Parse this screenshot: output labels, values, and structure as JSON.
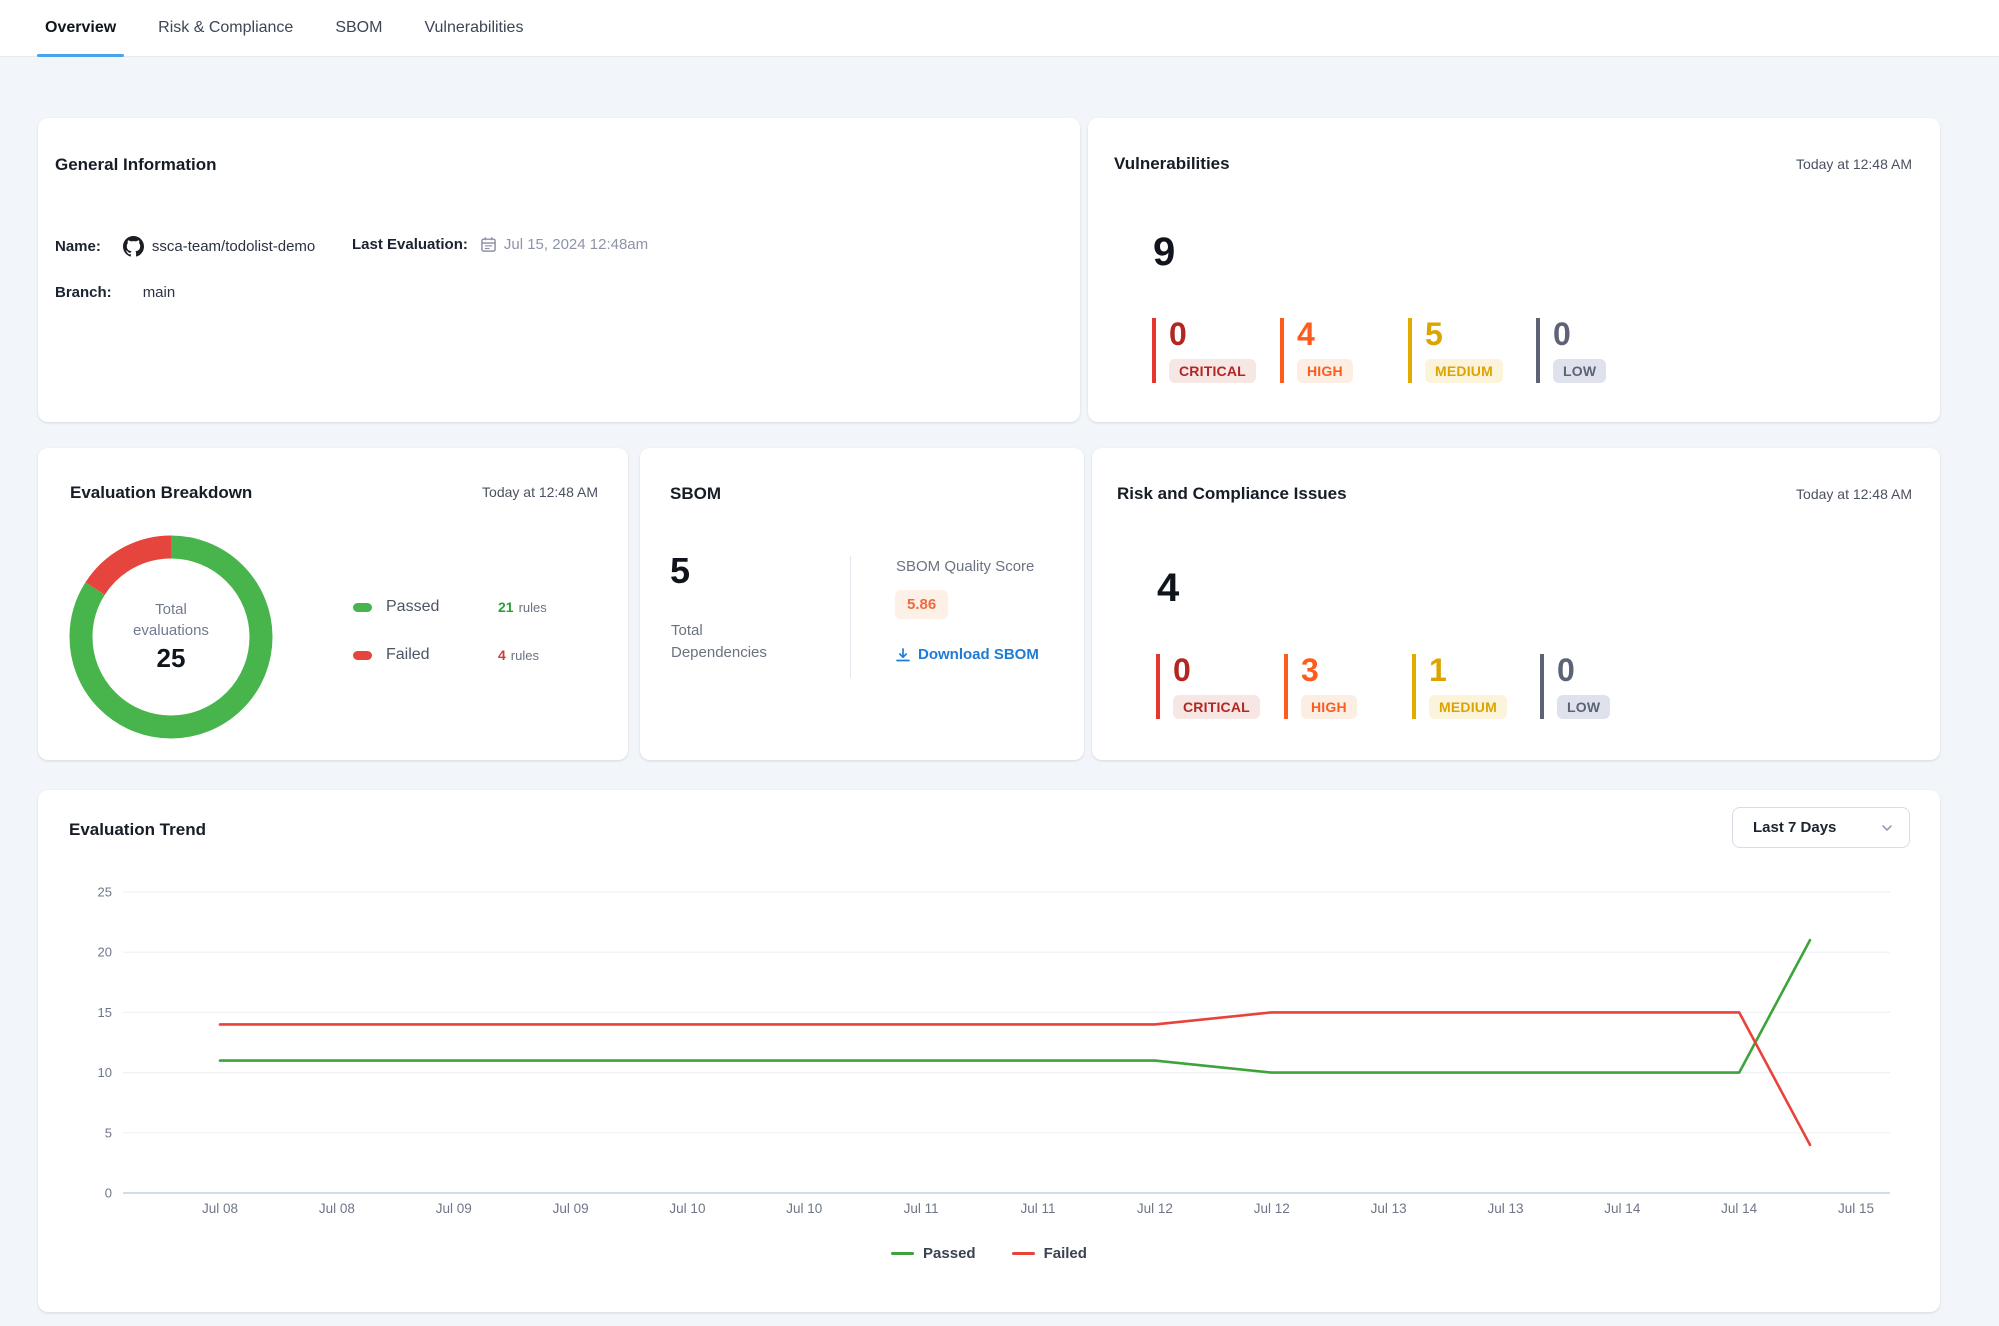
{
  "tabs": {
    "items": [
      {
        "label": "Overview"
      },
      {
        "label": "Risk & Compliance"
      },
      {
        "label": "SBOM"
      },
      {
        "label": "Vulnerabilities"
      }
    ]
  },
  "general": {
    "title": "General Information",
    "name_label": "Name:",
    "name_value": "ssca-team/todolist-demo",
    "last_eval_label": "Last Evaluation:",
    "last_eval_value": "Jul 15, 2024 12:48am",
    "branch_label": "Branch:",
    "branch_value": "main"
  },
  "vulnerabilities": {
    "title": "Vulnerabilities",
    "timestamp": "Today at 12:48 AM",
    "total": "9",
    "severities": [
      {
        "label": "CRITICAL",
        "count": "0"
      },
      {
        "label": "HIGH",
        "count": "4"
      },
      {
        "label": "MEDIUM",
        "count": "5"
      },
      {
        "label": "LOW",
        "count": "0"
      }
    ]
  },
  "breakdown": {
    "title": "Evaluation Breakdown",
    "timestamp": "Today at 12:48 AM",
    "center_caption_line1": "Total",
    "center_caption_line2": "evaluations",
    "center_total": "25",
    "legend": [
      {
        "label": "Passed",
        "count": "21",
        "unit": "rules"
      },
      {
        "label": "Failed",
        "count": "4",
        "unit": "rules"
      }
    ]
  },
  "sbom": {
    "title": "SBOM",
    "total": "5",
    "total_caption_line1": "Total",
    "total_caption_line2": "Dependencies",
    "score_label": "SBOM Quality Score",
    "score_value": "5.86",
    "download_label": "Download SBOM"
  },
  "risk": {
    "title": "Risk and Compliance Issues",
    "timestamp": "Today at 12:48 AM",
    "total": "4",
    "severities": [
      {
        "label": "CRITICAL",
        "count": "0"
      },
      {
        "label": "HIGH",
        "count": "3"
      },
      {
        "label": "MEDIUM",
        "count": "1"
      },
      {
        "label": "LOW",
        "count": "0"
      }
    ]
  },
  "trend": {
    "title": "Evaluation Trend",
    "range_selector": "Last 7 Days"
  },
  "chart_data": {
    "type": "line",
    "title": "Evaluation Trend",
    "categories": [
      "Jul 08",
      "Jul 08",
      "Jul 09",
      "Jul 09",
      "Jul 10",
      "Jul 10",
      "Jul 11",
      "Jul 11",
      "Jul 12",
      "Jul 12",
      "Jul 13",
      "Jul 13",
      "Jul 14",
      "Jul 14",
      "Jul 15"
    ],
    "series": [
      {
        "name": "Passed",
        "color": "#3fa33c",
        "values": [
          11,
          11,
          11,
          11,
          11,
          11,
          11,
          11,
          11,
          10,
          10,
          10,
          10,
          10,
          21
        ]
      },
      {
        "name": "Failed",
        "color": "#e8433a",
        "values": [
          14,
          14,
          14,
          14,
          14,
          14,
          14,
          14,
          14,
          15,
          15,
          15,
          15,
          15,
          4
        ]
      }
    ],
    "ylim": [
      0,
      25
    ],
    "yticks": [
      0,
      5,
      10,
      15,
      20,
      25
    ],
    "grid": true,
    "legend_position": "bottom"
  },
  "colors": {
    "tab_accent": "#4aa3e8",
    "passed_line": "#3fa33c",
    "failed_line": "#e8433a",
    "donut_passed": "#47b44c",
    "donut_failed": "#e5453c",
    "critical": "#b32622",
    "high": "#fd5c1e",
    "medium": "#dda400",
    "low": "#5c6377",
    "link": "#1f7cd6",
    "score": "#ee6a41"
  }
}
